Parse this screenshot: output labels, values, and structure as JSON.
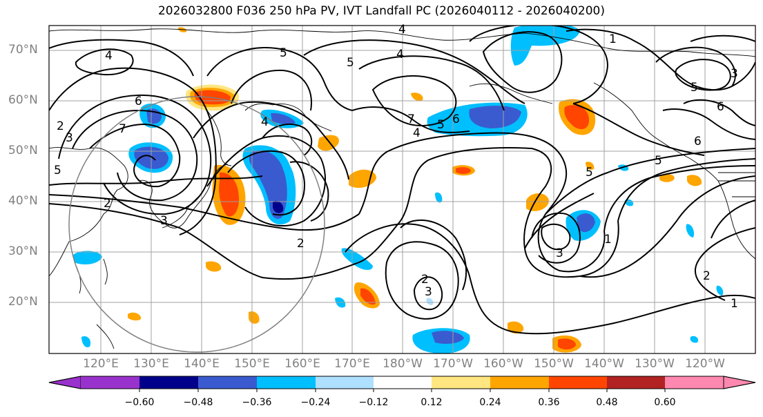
{
  "title": "2026032800 F036 250 hPa PV, IVT Landfall PC (2026040112 - 2026040200)",
  "latitude_labels": [
    "70°N",
    "60°N",
    "50°N",
    "40°N",
    "30°N",
    "20°N"
  ],
  "longitude_labels": [
    "120°E",
    "130°E",
    "140°E",
    "150°E",
    "160°E",
    "170°E",
    "180°W",
    "170°W",
    "160°W",
    "150°W",
    "140°W",
    "130°W",
    "120°W"
  ],
  "colorbar": {
    "ticks": [
      "−0.60",
      "−0.48",
      "−0.36",
      "−0.24",
      "−0.12",
      "0.12",
      "0.24",
      "0.36",
      "0.48",
      "0.60"
    ],
    "colors": [
      "#9932cc",
      "#00008b",
      "#3a5bd0",
      "#00bfff",
      "#aee0ff",
      "#ffffff",
      "#ffe680",
      "#ffa500",
      "#ff4500",
      "#b22222",
      "#ff88b0"
    ]
  },
  "pv_contour_labels": [
    "1",
    "2",
    "3",
    "4",
    "5",
    "6",
    "7"
  ]
}
